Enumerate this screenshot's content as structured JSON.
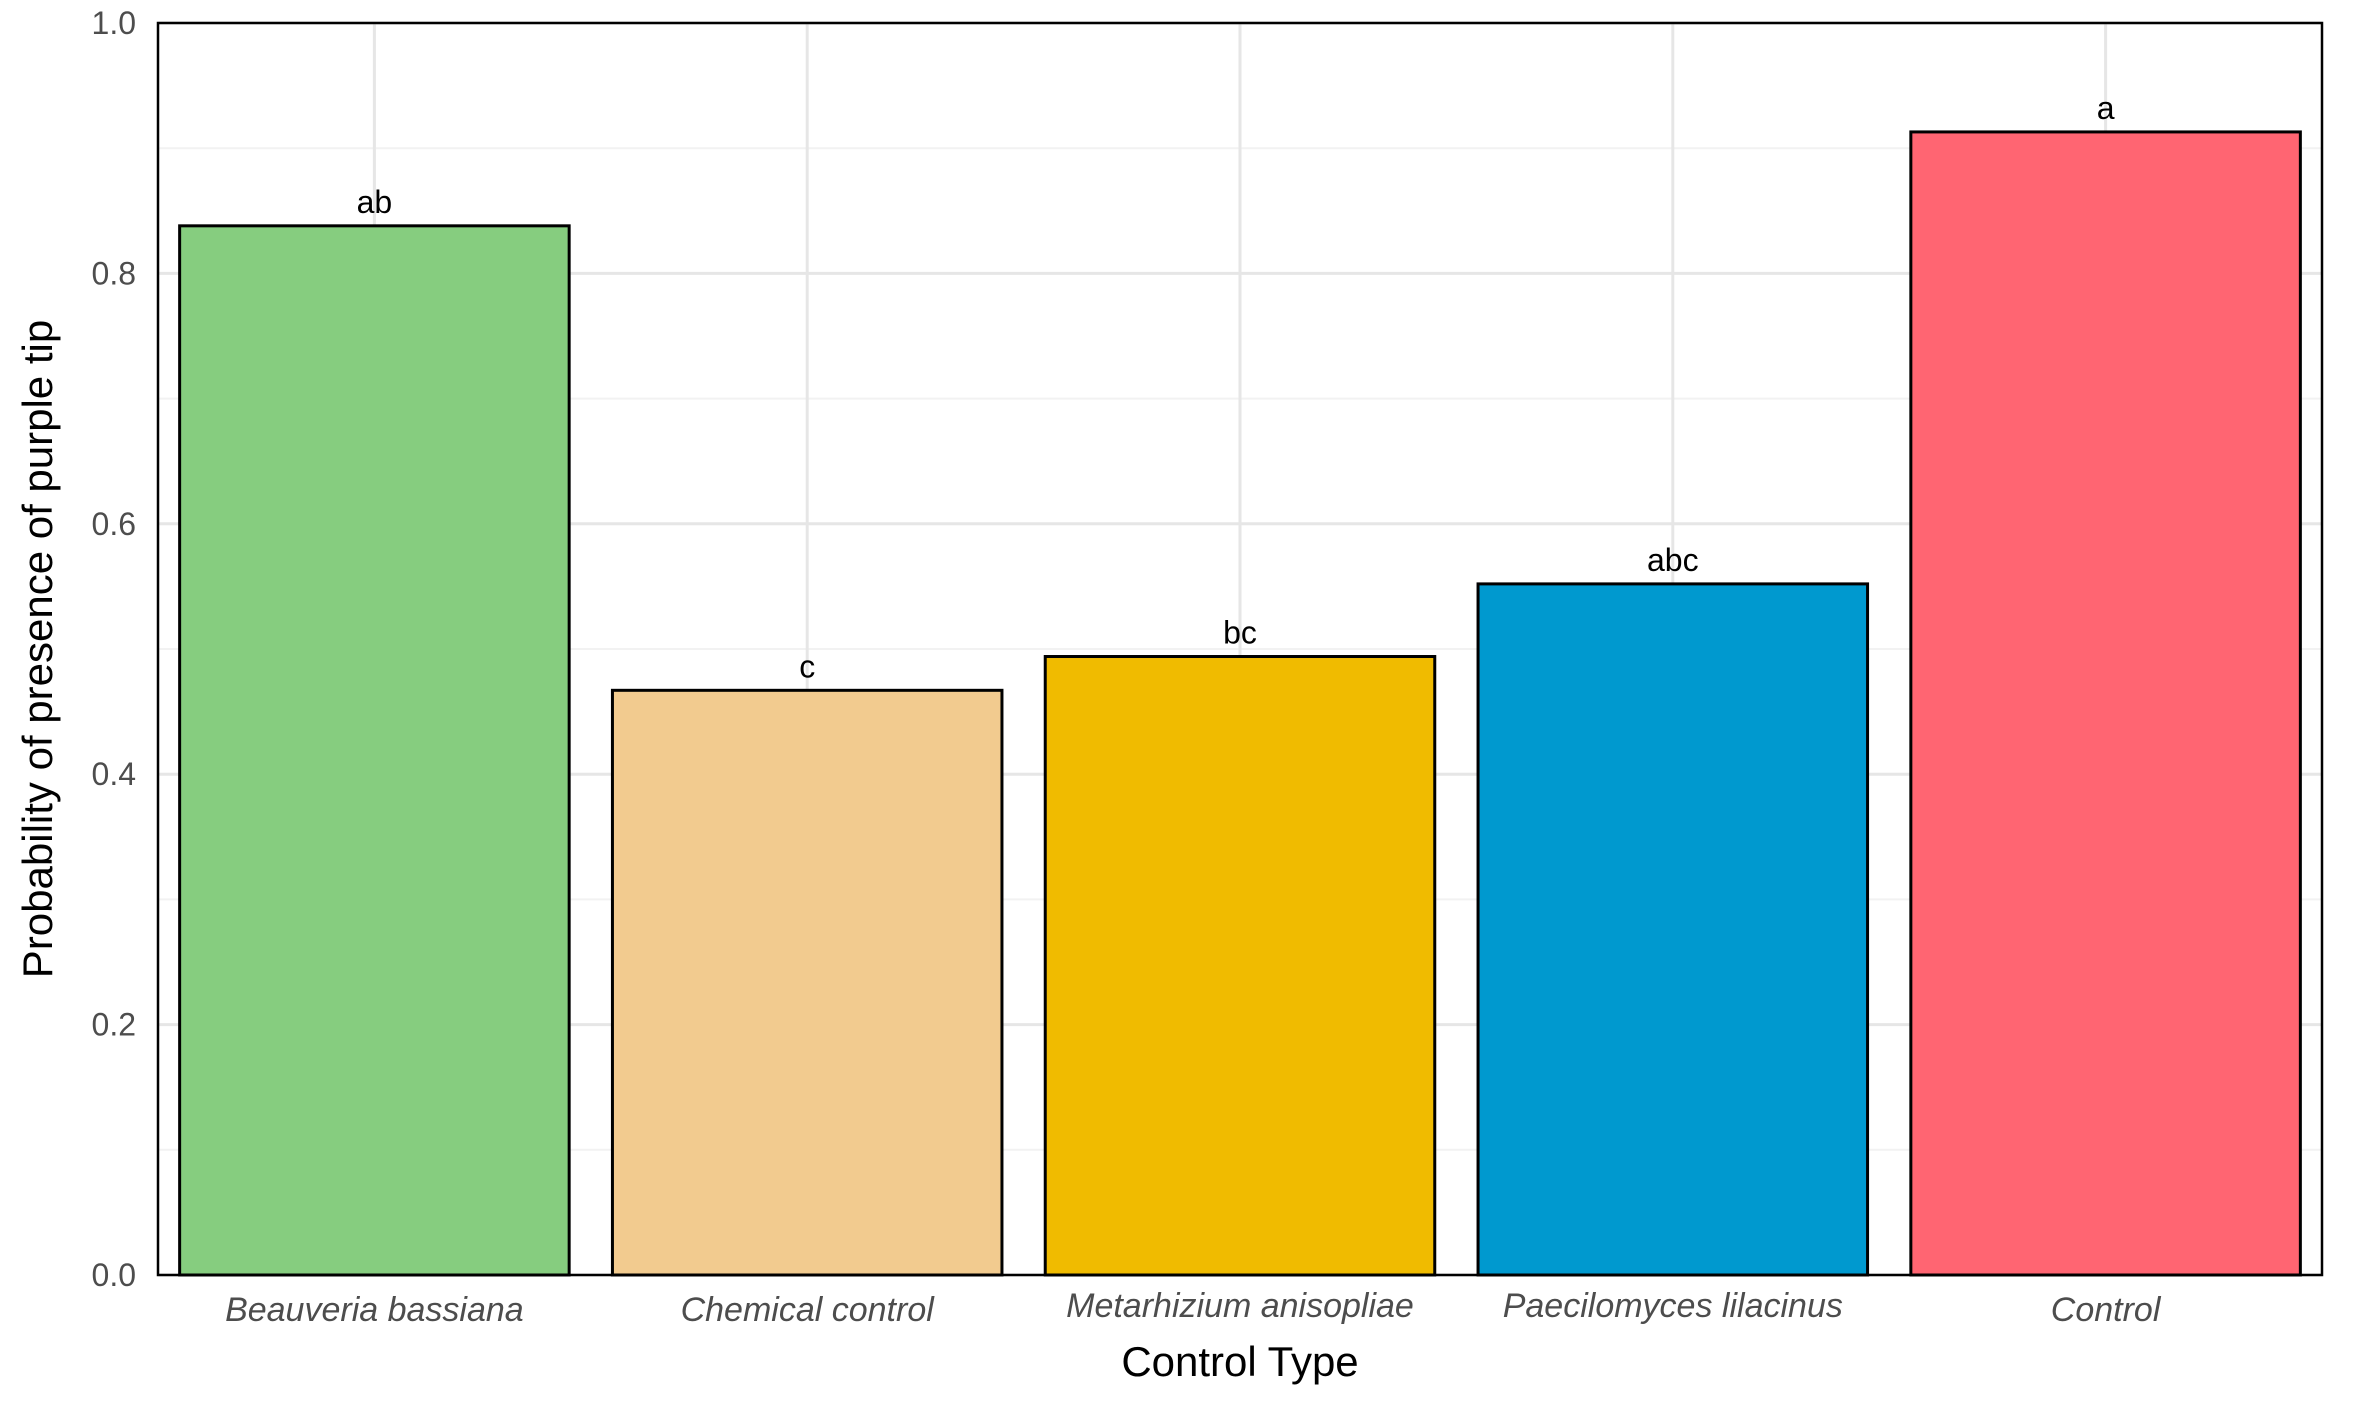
{
  "chart_data": {
    "type": "bar",
    "title": "",
    "xlabel": "Control Type",
    "ylabel": "Probability of presence of purple tip",
    "ylim": [
      0,
      1
    ],
    "y_ticks": [
      "0.0",
      "0.2",
      "0.4",
      "0.6",
      "0.8",
      "1.0"
    ],
    "categories": [
      "Beauveria bassiana",
      "Chemical control",
      "Metarhizium anisopliae",
      "Paecilomyces lilacinus",
      "Control"
    ],
    "values": [
      0.838,
      0.467,
      0.494,
      0.552,
      0.913
    ],
    "bar_labels": [
      "ab",
      "c",
      "bc",
      "abc",
      "a"
    ],
    "colors": [
      "#86CD7F",
      "#F2CB8F",
      "#F0BB00",
      "#0099CF",
      "#FF6572"
    ],
    "grid": true,
    "legend": "none"
  }
}
